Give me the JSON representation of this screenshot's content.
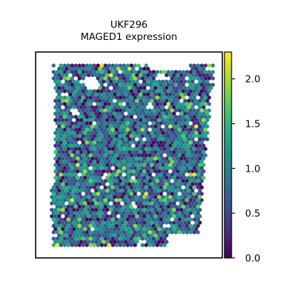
{
  "chart_data": {
    "type": "heatmap",
    "title_lines": [
      "UKF296",
      "MAGED1 expression"
    ],
    "colormap": "viridis",
    "colorbar": {
      "range": [
        0.0,
        2.3
      ],
      "ticks": [
        0.0,
        0.5,
        1.0,
        1.5,
        2.0
      ],
      "tick_labels": [
        "0.0",
        "0.5",
        "1.0",
        "1.5",
        "2.0"
      ]
    },
    "axes_visible": false,
    "grid": false,
    "legend": "colorbar-right",
    "spot_shape": "hexagon",
    "value_distribution": {
      "min": 0.0,
      "max": 2.3,
      "typical": 0.9
    }
  }
}
